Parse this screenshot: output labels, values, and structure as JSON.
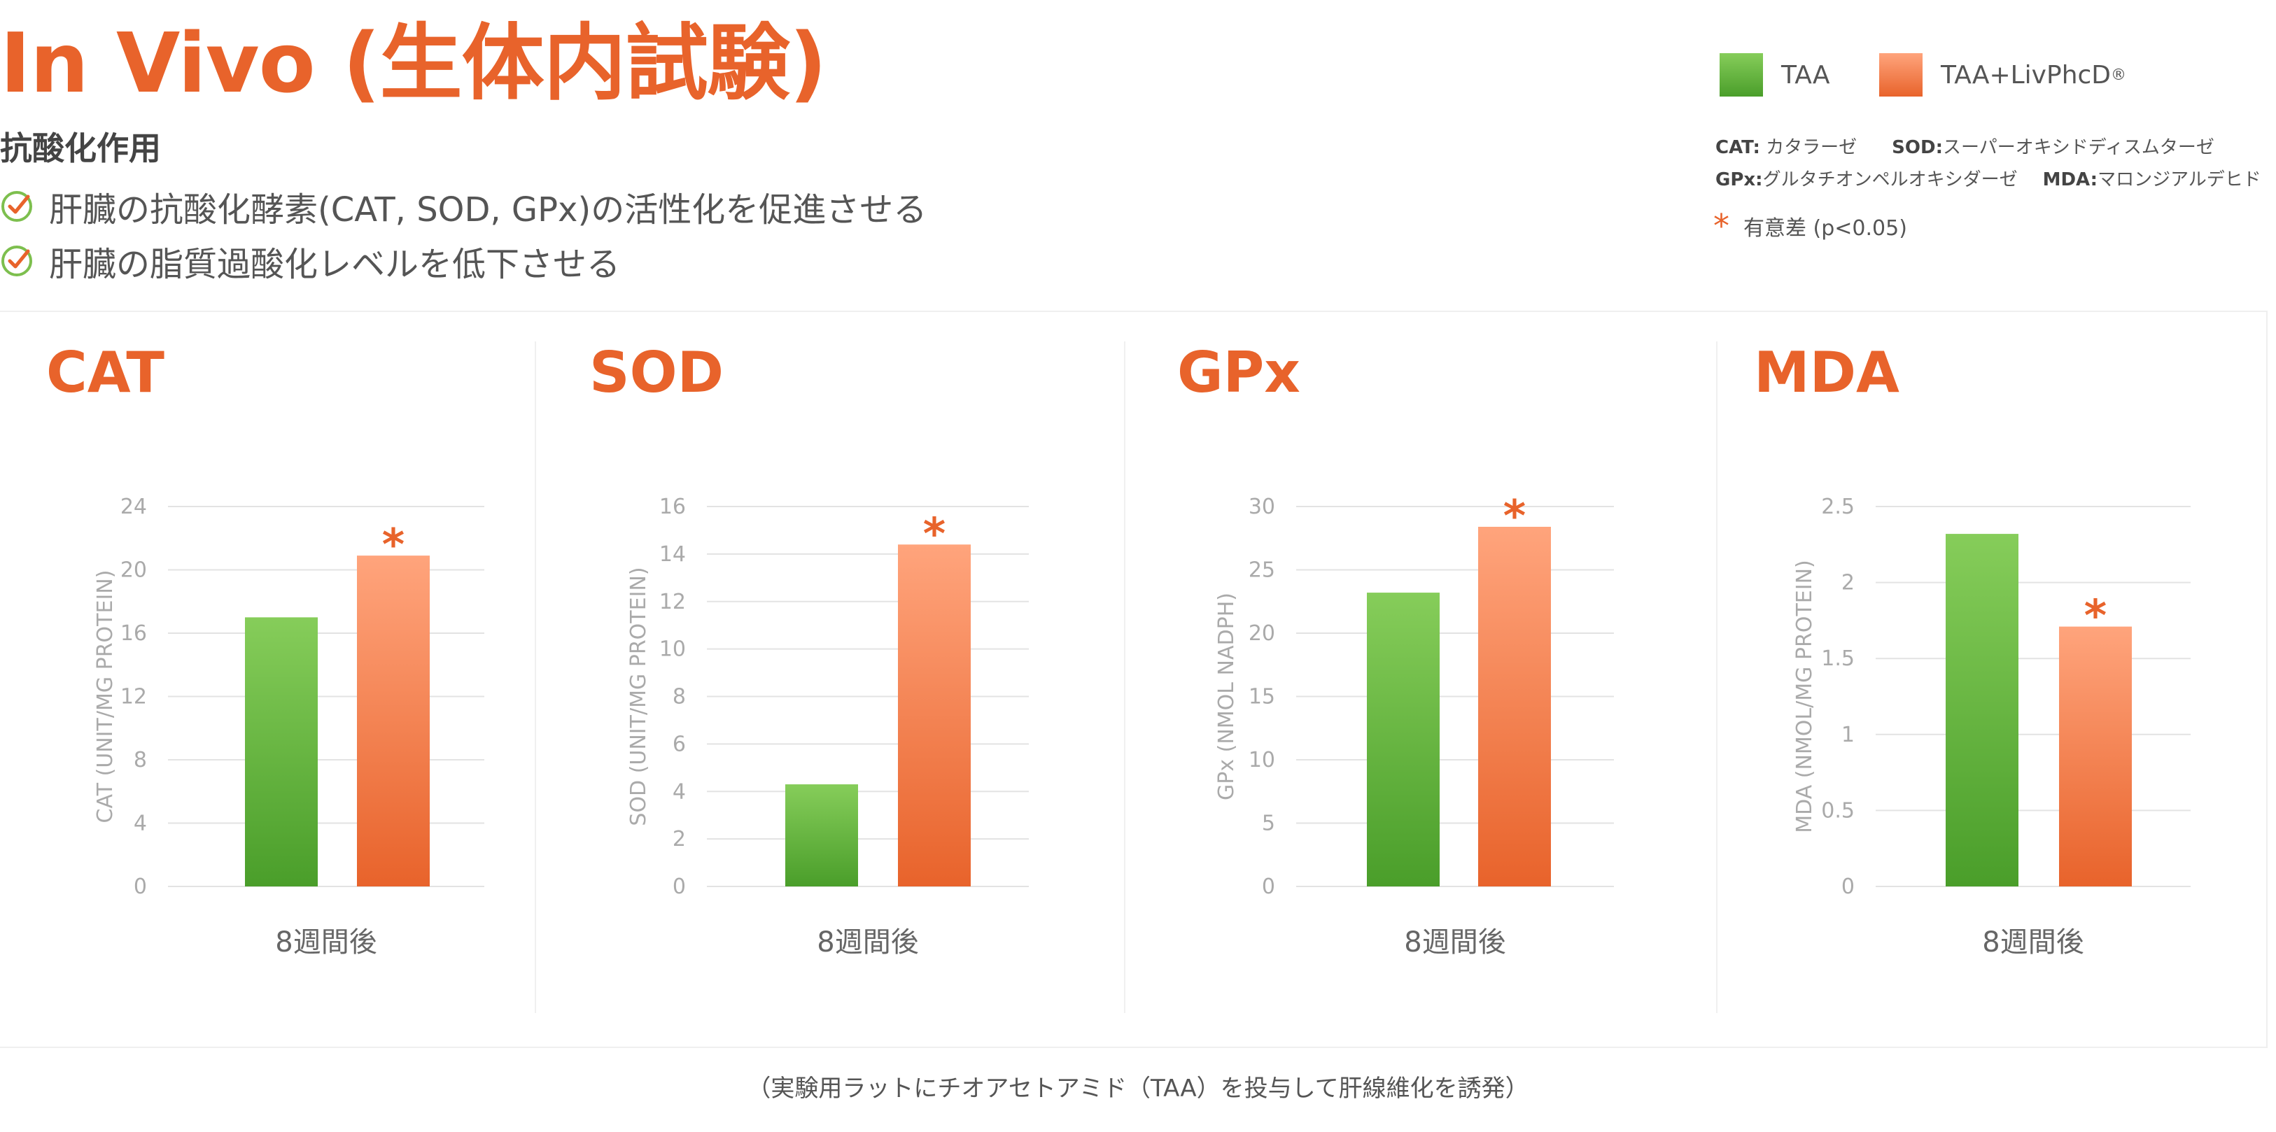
{
  "header": {
    "title": "In Vivo (生体内試験)",
    "subtitle": "抗酸化作用",
    "bullets": [
      "肝臓の抗酸化酵素(CAT, SOD, GPx)の活性化を促進させる",
      "肝臓の脂質過酸化レベルを低下させる"
    ]
  },
  "legend": {
    "items": [
      {
        "label": "TAA",
        "color": "#5aae3a"
      },
      {
        "label": "TAA+LivPhcD",
        "sup": "®",
        "color": "#f28a5c"
      }
    ],
    "abbreviations": [
      [
        {
          "key": "CAT:",
          "value": " カタラーゼ"
        },
        {
          "key": "SOD:",
          "value": "スーパーオキシドディスムターゼ"
        }
      ],
      [
        {
          "key": "GPx:",
          "value": "グルタチオンペルオキシダーゼ"
        },
        {
          "key": "MDA:",
          "value": "マロンジアルデヒド"
        }
      ]
    ],
    "significance_symbol": "*",
    "significance_text": "有意差 (p<0.05)"
  },
  "colors": {
    "accent": "#e8632b",
    "taa_top": "#86cd5a",
    "taa_bottom": "#4a9e2a",
    "liv_top": "#ffa47c",
    "liv_bottom": "#e8632b"
  },
  "chart_data": [
    {
      "type": "bar",
      "title": "CAT",
      "ylabel": "CAT (UNIT/MG PROTEIN)",
      "categories": [
        "8週間後"
      ],
      "ylim": [
        0,
        24
      ],
      "yticks": [
        "0",
        "4",
        "8",
        "12",
        "16",
        "20",
        "24"
      ],
      "series": [
        {
          "name": "TAA",
          "values": [
            17
          ]
        },
        {
          "name": "TAA+LivPhcD",
          "values": [
            20.9
          ],
          "significant": true
        }
      ]
    },
    {
      "type": "bar",
      "title": "SOD",
      "ylabel": "SOD (UNIT/MG PROTEIN)",
      "categories": [
        "8週間後"
      ],
      "ylim": [
        0,
        16
      ],
      "yticks": [
        "0",
        "2",
        "4",
        "6",
        "8",
        "10",
        "12",
        "14",
        "16"
      ],
      "series": [
        {
          "name": "TAA",
          "values": [
            4.3
          ]
        },
        {
          "name": "TAA+LivPhcD",
          "values": [
            14.4
          ],
          "significant": true
        }
      ]
    },
    {
      "type": "bar",
      "title": "GPx",
      "ylabel": "GPx (NMOL NADPH)",
      "categories": [
        "8週間後"
      ],
      "ylim": [
        0,
        30
      ],
      "yticks": [
        "0",
        "5",
        "10",
        "15",
        "20",
        "25",
        "30"
      ],
      "series": [
        {
          "name": "TAA",
          "values": [
            23.2
          ]
        },
        {
          "name": "TAA+LivPhcD",
          "values": [
            28.4
          ],
          "significant": true
        }
      ]
    },
    {
      "type": "bar",
      "title": "MDA",
      "ylabel": "MDA (NMOL/MG PROTEIN)",
      "categories": [
        "8週間後"
      ],
      "ylim": [
        0,
        2.5
      ],
      "yticks": [
        "0",
        "0.5",
        "1",
        "1.5",
        "2",
        "2.5"
      ],
      "series": [
        {
          "name": "TAA",
          "values": [
            2.32
          ]
        },
        {
          "name": "TAA+LivPhcD",
          "values": [
            1.71
          ],
          "significant": true
        }
      ]
    }
  ],
  "footer": "（実験用ラットにチオアセトアミド（TAA）を投与して肝線維化を誘発）"
}
